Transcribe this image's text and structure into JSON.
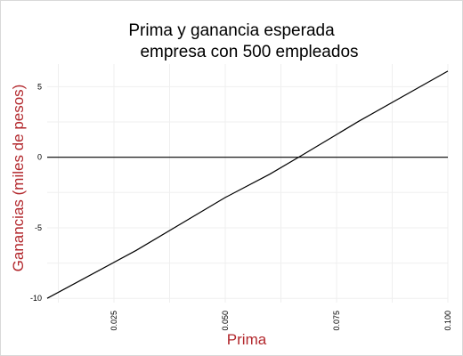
{
  "chart_data": {
    "type": "line",
    "title_lines": [
      "Prima y ganancia esperada",
      "empresa con 500 empleados"
    ],
    "xlabel": "Prima",
    "ylabel": "Ganancias (miles de pesos)",
    "xlim": [
      0.01,
      0.1
    ],
    "ylim": [
      -10.3,
      6.6
    ],
    "x_ticks": [
      0.025,
      0.05,
      0.075,
      0.1
    ],
    "x_tick_labels": [
      "0.025",
      "0.050",
      "0.075",
      "0.100"
    ],
    "y_ticks": [
      -10,
      -5,
      0,
      5
    ],
    "y_tick_labels": [
      "-10",
      "-5",
      "0",
      "5"
    ],
    "grid": true,
    "label_color": "#b2272c",
    "series": [
      {
        "x": [
          0.01,
          0.03,
          0.05,
          0.06,
          0.067,
          0.08,
          0.1
        ],
        "y": [
          -10.0,
          -6.6,
          -2.85,
          -1.2,
          0.1,
          2.55,
          6.1
        ],
        "color": "#000000"
      },
      {
        "x": [
          0.01,
          0.1
        ],
        "y": [
          0,
          0
        ],
        "color": "#000000"
      }
    ]
  }
}
